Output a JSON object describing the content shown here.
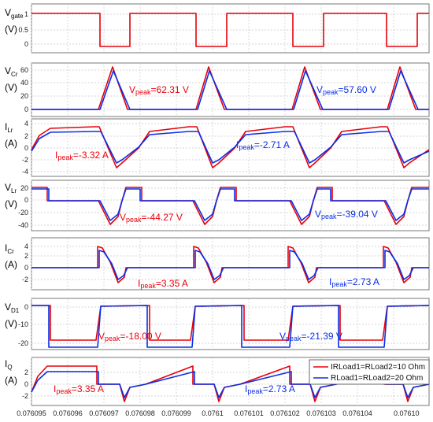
{
  "chart_data": {
    "type": "line",
    "x_ticks": [
      "0.076095",
      "0.076096",
      "0.076097",
      "0.076098",
      "0.076099",
      "0.0761",
      "0.076101",
      "0.076102",
      "0.076103",
      "0.076104",
      "0.07610"
    ],
    "legend": {
      "position": "right",
      "entries": [
        {
          "label": "IRLoad1=RLoad2=10 Ohm",
          "color": "#e8000b"
        },
        {
          "label": "RLoad1=RLoad2=20 Ohm",
          "color": "#0a2ee6"
        }
      ]
    },
    "colors": {
      "series1": "#e8000b",
      "series2": "#0a2ee6"
    },
    "panels": [
      {
        "id": "vgate",
        "ylabel_main": "V",
        "ylabel_sub": "gate",
        "ylabel_unit": "(V)",
        "yticks": [
          "1",
          "0.5",
          "0"
        ],
        "ylim": [
          0,
          1
        ],
        "annotations": []
      },
      {
        "id": "vcr",
        "ylabel_main": "V",
        "ylabel_sub": "Cr",
        "ylabel_unit": "(V)",
        "yticks": [
          "60",
          "40",
          "20",
          "0"
        ],
        "ylim": [
          0,
          65
        ],
        "annotations": [
          {
            "main": "V",
            "sub": "peak",
            "value": "=62.31 V",
            "color": "#e8000b"
          },
          {
            "main": "V",
            "sub": "peak",
            "value": "=57.60 V",
            "color": "#0a2ee6"
          }
        ]
      },
      {
        "id": "ilr",
        "ylabel_main": "I",
        "ylabel_sub": "Lr",
        "ylabel_unit": "(A)",
        "yticks": [
          "4",
          "2",
          "0",
          "-2",
          "-4"
        ],
        "ylim": [
          -4,
          4
        ],
        "annotations": [
          {
            "main": "I",
            "sub": "peak",
            "value": "=-3.32 A",
            "color": "#e8000b"
          },
          {
            "main": "I",
            "sub": "peak",
            "value": "=-2.71 A",
            "color": "#0a2ee6"
          }
        ]
      },
      {
        "id": "vlr",
        "ylabel_main": "V",
        "ylabel_sub": "Lr",
        "ylabel_unit": "(V)",
        "yticks": [
          "20",
          "0",
          "-20",
          "-40"
        ],
        "ylim": [
          -45,
          25
        ],
        "annotations": [
          {
            "main": "V",
            "sub": "peak",
            "value": "=-44.27 V",
            "color": "#e8000b"
          },
          {
            "main": "V",
            "sub": "peak",
            "value": "=-39.04 V",
            "color": "#0a2ee6"
          }
        ]
      },
      {
        "id": "icr",
        "ylabel_main": "I",
        "ylabel_sub": "Cr",
        "ylabel_unit": "(A)",
        "yticks": [
          "4",
          "2",
          "0",
          "-2"
        ],
        "ylim": [
          -3.5,
          4
        ],
        "annotations": [
          {
            "main": "I",
            "sub": "peak",
            "value": "=3.35 A",
            "color": "#e8000b"
          },
          {
            "main": "I",
            "sub": "peak",
            "value": "=2.73 A",
            "color": "#0a2ee6"
          }
        ]
      },
      {
        "id": "vd1",
        "ylabel_main": "V",
        "ylabel_sub": "D1",
        "ylabel_unit": "(V)",
        "yticks": [
          "0",
          "-10",
          "-20"
        ],
        "ylim": [
          -24,
          1
        ],
        "annotations": [
          {
            "main": "V",
            "sub": "peak",
            "value": "=-18.00 V",
            "color": "#e8000b"
          },
          {
            "main": "V",
            "sub": "peak",
            "value": "=-21.39 V",
            "color": "#0a2ee6"
          }
        ]
      },
      {
        "id": "iq",
        "ylabel_main": "I",
        "ylabel_sub": "Q",
        "ylabel_unit": "(A)",
        "yticks": [
          "2",
          "0",
          "-2"
        ],
        "ylim": [
          -3.5,
          4
        ],
        "annotations": [
          {
            "main": "I",
            "sub": "peak",
            "value": "=3.35 A",
            "color": "#e8000b"
          },
          {
            "main": "I",
            "sub": "peak",
            "value": "=2.73 A",
            "color": "#0a2ee6"
          }
        ]
      }
    ]
  }
}
